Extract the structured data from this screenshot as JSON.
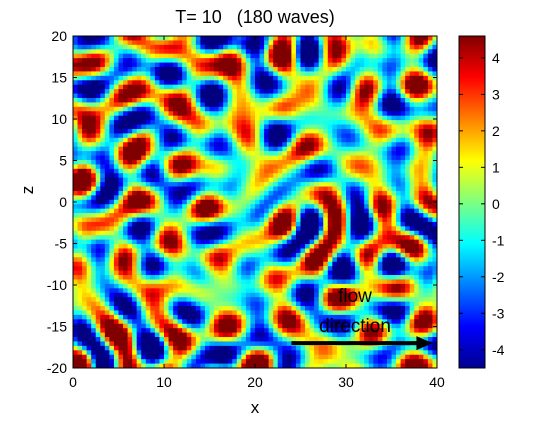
{
  "chart_data": {
    "type": "heatmap",
    "title": "T= 10   (180 waves)",
    "xlabel": "x",
    "ylabel": "z",
    "xlim": [
      0,
      40
    ],
    "ylim": [
      -20,
      20
    ],
    "x_ticks": [
      0,
      10,
      20,
      30,
      40
    ],
    "y_ticks": [
      20,
      15,
      10,
      5,
      0,
      -5,
      -10,
      -15,
      -20
    ],
    "colorbar": {
      "range": [
        -4.5,
        4.6
      ],
      "ticks": [
        4,
        3,
        2,
        1,
        0,
        -1,
        -2,
        -3,
        -4
      ],
      "colormap": "jet"
    },
    "field_description": "random wave field of 180 superposed waves, values roughly between -4.5 and 4.6",
    "annotation": {
      "text_line1": "flow",
      "text_line2": "direction",
      "arrow_from": [
        24,
        -17
      ],
      "arrow_to": [
        39.5,
        -17
      ]
    }
  }
}
